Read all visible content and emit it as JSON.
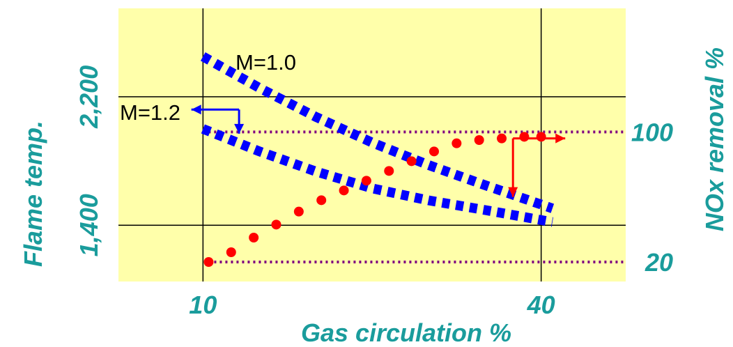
{
  "chart_data": {
    "type": "line",
    "title": "",
    "xlabel": "Gas circulation  %",
    "ylabel_left": "Flame temp.",
    "ylabel_right": "NOx removal  %",
    "x_ticks": [
      {
        "value": 10,
        "label": "10"
      },
      {
        "value": 40,
        "label": "40"
      }
    ],
    "y_left_ticks": [
      {
        "value": 1400,
        "label": "1,400"
      },
      {
        "value": 2200,
        "label": "2,200"
      }
    ],
    "y_right_ticks": [
      {
        "value": 20,
        "label": "20"
      },
      {
        "value": 100,
        "label": "100"
      }
    ],
    "xlim": [
      2.5,
      47.5
    ],
    "ylim_left": [
      1050,
      2750
    ],
    "ylim_right": [
      8,
      176
    ],
    "grid": true,
    "colors": {
      "plot_bg": "#ffffaa",
      "flame_series": "#0000ff",
      "nox_series": "#ff0000",
      "reference_lines": "#800080",
      "axis_labels": "#1a9c9c"
    },
    "series": [
      {
        "name": "M=1.0",
        "axis": "left",
        "style": "dashed-thick",
        "x": [
          10,
          15,
          20,
          25,
          30,
          35,
          41
        ],
        "y": [
          2450,
          2255,
          2075,
          1915,
          1775,
          1650,
          1505
        ]
      },
      {
        "name": "M=1.2",
        "axis": "left",
        "style": "dashed-thick",
        "x": [
          10,
          15,
          20,
          25,
          30,
          35,
          41
        ],
        "y": [
          2000,
          1860,
          1735,
          1630,
          1555,
          1495,
          1420
        ]
      },
      {
        "name": "",
        "axis": "right",
        "style": "dotted",
        "x": [
          10.5,
          12.5,
          14.5,
          16.5,
          18.5,
          20.5,
          22.5,
          24.5,
          26.5,
          28.5,
          30.5,
          32.5,
          34.5,
          36.5,
          38.5,
          40
        ],
        "y": [
          20,
          26,
          35,
          43,
          51,
          58,
          64,
          70,
          76,
          82,
          88,
          93,
          95,
          96,
          97,
          97
        ]
      }
    ],
    "annotations": [
      {
        "text": "M=1.0",
        "target": "series-m10"
      },
      {
        "text": "M=1.2",
        "target": "series-m12"
      }
    ]
  }
}
